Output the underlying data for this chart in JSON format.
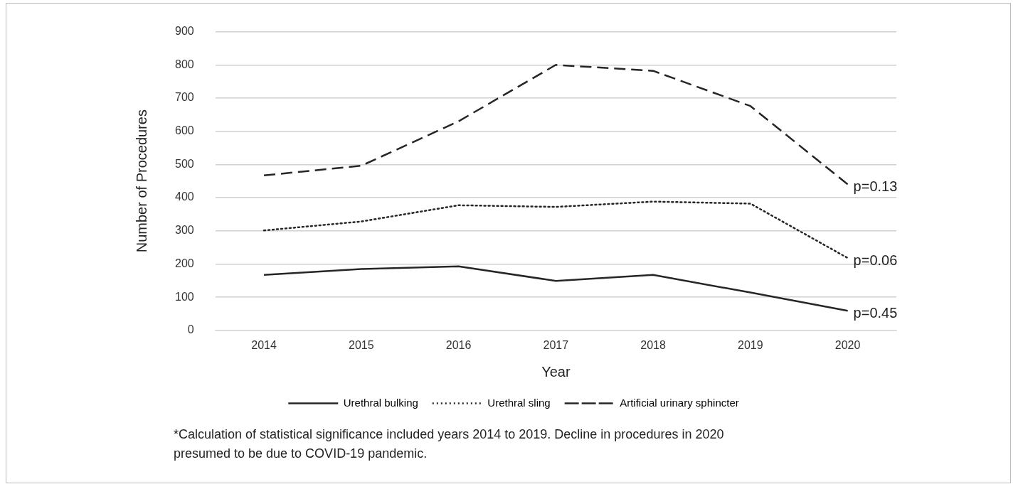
{
  "chart_data": {
    "type": "line",
    "xlabel": "Year",
    "ylabel": "Number of Procedures",
    "categories": [
      "2014",
      "2015",
      "2016",
      "2017",
      "2018",
      "2019",
      "2020"
    ],
    "series": [
      {
        "name": "Urethral bulking",
        "color": "#262626",
        "line_style": "solid",
        "values": [
          167,
          185,
          193,
          149,
          167,
          114,
          59
        ]
      },
      {
        "name": "Urethral sling",
        "color": "#262626",
        "line_style": "dotted",
        "values": [
          301,
          328,
          377,
          372,
          388,
          382,
          218
        ]
      },
      {
        "name": "Artificial urinary sphincter",
        "color": "#262626",
        "line_style": "dashed",
        "values": [
          467,
          496,
          630,
          800,
          782,
          676,
          440
        ]
      }
    ],
    "ylim": [
      0,
      900
    ],
    "yticks": [
      0,
      100,
      200,
      300,
      400,
      500,
      600,
      700,
      800,
      900
    ],
    "grid": "y",
    "legend": "bottom",
    "marker": "none",
    "annotations": [
      {
        "text": "p=0.13",
        "x": "2020",
        "y": 440
      },
      {
        "text": "p=0.06",
        "x": "2020",
        "y": 218
      },
      {
        "text": "p=0.45",
        "x": "2020",
        "y": 59
      },
      "*Calculation of statistical significance included years 2014 to 2019. Decline in procedures in 2020 presumed to be due to COVID-19 pandemic."
    ]
  }
}
